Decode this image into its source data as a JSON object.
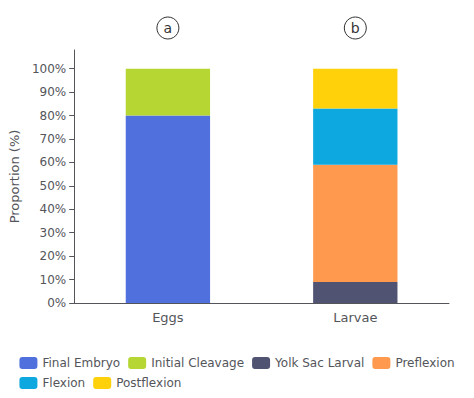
{
  "chart_data": {
    "type": "bar",
    "stacked": true,
    "categories": [
      "Eggs",
      "Larvae"
    ],
    "series": [
      {
        "name": "Final Embryo",
        "values": [
          80,
          0
        ]
      },
      {
        "name": "Initial Cleavage",
        "values": [
          20,
          0
        ]
      },
      {
        "name": "Yolk Sac Larval",
        "values": [
          0,
          9
        ]
      },
      {
        "name": "Preflexion",
        "values": [
          0,
          50
        ]
      },
      {
        "name": "Flexion",
        "values": [
          0,
          24
        ]
      },
      {
        "name": "Postflexion",
        "values": [
          0,
          17
        ]
      }
    ],
    "ylabel": "Proportion (%)",
    "ylim": [
      0,
      108
    ],
    "yticks": [
      {
        "value": 0,
        "label": "0%"
      },
      {
        "value": 10,
        "label": "10%"
      },
      {
        "value": 20,
        "label": "20%"
      },
      {
        "value": 30,
        "label": "30%"
      },
      {
        "value": 40,
        "label": "40%"
      },
      {
        "value": 50,
        "label": "50%"
      },
      {
        "value": 60,
        "label": "60%"
      },
      {
        "value": 70,
        "label": "70%"
      },
      {
        "value": 80,
        "label": "80%"
      },
      {
        "value": 90,
        "label": "90%"
      },
      {
        "value": 100,
        "label": "100%"
      }
    ],
    "annotations": [
      "a",
      "b"
    ],
    "legend": "bottom",
    "grid": false
  }
}
